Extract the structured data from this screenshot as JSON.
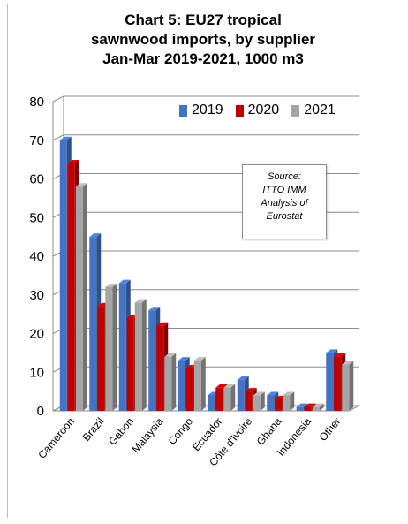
{
  "chart_data": {
    "type": "bar",
    "title_lines": [
      "Chart 5: EU27 tropical",
      "sawnwood imports, by supplier",
      "Jan-Mar 2019-2021, 1000 m3"
    ],
    "categories": [
      "Cameroon",
      "Brazil",
      "Gabon",
      "Malaysia",
      "Congo",
      "Ecuador",
      "Côte d'Ivoire",
      "Ghana",
      "Indonesia",
      "Other"
    ],
    "series": [
      {
        "name": "2019",
        "color": "#4472c4",
        "values": [
          70,
          45,
          33,
          26,
          13,
          4,
          8,
          4,
          1,
          15
        ]
      },
      {
        "name": "2020",
        "color": "#c00000",
        "values": [
          64,
          27,
          24,
          22,
          11,
          6,
          5,
          3,
          1,
          14
        ]
      },
      {
        "name": "2021",
        "color": "#a5a5a5",
        "values": [
          58,
          32,
          28,
          14,
          13,
          6,
          4,
          4,
          1,
          12
        ]
      }
    ],
    "yticks": [
      "0",
      "10",
      "20",
      "30",
      "40",
      "50",
      "60",
      "70",
      "80"
    ],
    "ylim": [
      0,
      80
    ],
    "legend_position": "top-right",
    "grid": true,
    "annotation": [
      "Source:",
      "ITTO IMM",
      "Analysis of",
      "Eurostat"
    ]
  }
}
